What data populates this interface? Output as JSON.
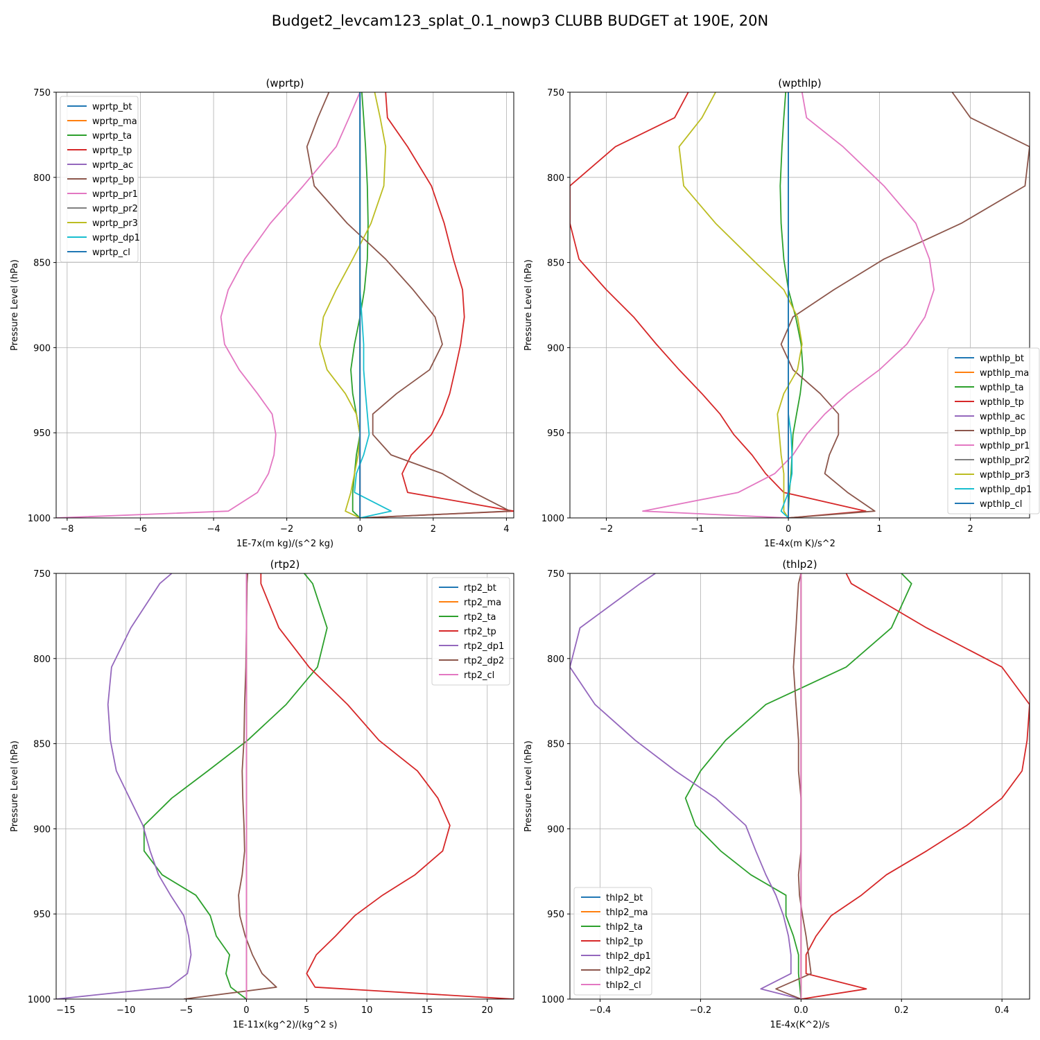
{
  "figure": {
    "title": "Budget2_levcam123_splat_0.1_nowp3 CLUBB BUDGET at 190E, 20N"
  },
  "chart_data": [
    {
      "type": "line",
      "title": "(wprtp)",
      "xlabel": "1E-7x(m kg)/(s^2 kg)",
      "ylabel": "Pressure Level (hPa)",
      "xlim": [
        -8.3,
        4.2
      ],
      "ylim": [
        1000,
        750
      ],
      "xticks": [
        -8,
        -6,
        -4,
        -2,
        0,
        2,
        4
      ],
      "yticks": [
        750,
        800,
        850,
        900,
        950,
        1000
      ],
      "grid": true,
      "legend_position": "upper-left",
      "y": [
        750,
        765,
        782,
        805,
        827,
        848,
        866,
        882,
        898,
        913,
        927,
        939,
        951,
        963,
        974,
        985,
        996,
        1000
      ],
      "series": [
        {
          "name": "wprtp_bt",
          "color": "#1f77b4",
          "values": [
            0,
            0,
            0,
            0,
            0,
            0,
            0,
            0,
            0,
            0,
            0,
            0,
            0,
            0,
            0,
            0,
            0,
            0
          ]
        },
        {
          "name": "wprtp_ma",
          "color": "#ff7f0e",
          "values": [
            0,
            0,
            0,
            0,
            0,
            0,
            0,
            0,
            0,
            0,
            0,
            0,
            0,
            0,
            0,
            0,
            0,
            0
          ]
        },
        {
          "name": "wprtp_ta",
          "color": "#2ca02c",
          "values": [
            0.05,
            0.1,
            0.15,
            0.2,
            0.22,
            0.2,
            0.12,
            0.0,
            -0.15,
            -0.25,
            -0.2,
            -0.1,
            0.0,
            -0.1,
            -0.15,
            -0.2,
            -0.2,
            0.0
          ]
        },
        {
          "name": "wprtp_tp",
          "color": "#d62728",
          "values": [
            0.7,
            0.75,
            1.3,
            1.95,
            2.3,
            2.55,
            2.8,
            2.85,
            2.75,
            2.6,
            2.45,
            2.25,
            1.95,
            1.4,
            1.15,
            1.3,
            4.2,
            0.0
          ]
        },
        {
          "name": "wprtp_ac",
          "color": "#9467bd",
          "values": [
            0,
            0,
            0,
            0,
            0,
            0,
            0,
            0,
            0,
            0,
            0,
            0,
            0,
            0,
            0,
            0,
            0,
            0
          ]
        },
        {
          "name": "wprtp_bp",
          "color": "#8c564b",
          "values": [
            -0.85,
            -1.15,
            -1.45,
            -1.25,
            -0.35,
            0.7,
            1.45,
            2.05,
            2.25,
            1.9,
            1.0,
            0.35,
            0.35,
            0.85,
            2.25,
            3.1,
            4.1,
            0.0
          ]
        },
        {
          "name": "wprtp_pr1",
          "color": "#e377c2",
          "values": [
            0.0,
            -0.3,
            -0.65,
            -1.55,
            -2.45,
            -3.15,
            -3.6,
            -3.8,
            -3.7,
            -3.3,
            -2.8,
            -2.4,
            -2.3,
            -2.35,
            -2.5,
            -2.8,
            -3.6,
            -8.3
          ]
        },
        {
          "name": "wprtp_pr2",
          "color": "#7f7f7f",
          "values": [
            0,
            0,
            0,
            0,
            0,
            0,
            0,
            0,
            0,
            0,
            0,
            0,
            0,
            0,
            0,
            0,
            0,
            0
          ]
        },
        {
          "name": "wprtp_pr3",
          "color": "#bcbd22",
          "values": [
            0.4,
            0.55,
            0.7,
            0.65,
            0.3,
            -0.2,
            -0.65,
            -1.0,
            -1.1,
            -0.9,
            -0.4,
            -0.1,
            0.0,
            -0.05,
            -0.15,
            -0.25,
            -0.4,
            0.0
          ]
        },
        {
          "name": "wprtp_dp1",
          "color": "#17becf",
          "values": [
            0,
            0,
            0,
            0,
            0,
            0,
            0,
            0.05,
            0.1,
            0.1,
            0.15,
            0.2,
            0.25,
            0.1,
            -0.1,
            -0.15,
            0.85,
            0.0
          ]
        },
        {
          "name": "wprtp_cl",
          "color": "#1f77b4",
          "values": [
            0,
            0,
            0,
            0,
            0,
            0,
            0,
            0,
            0,
            0,
            0,
            0,
            0,
            0,
            0,
            0,
            0,
            0
          ]
        }
      ]
    },
    {
      "type": "line",
      "title": "(wpthlp)",
      "xlabel": "1E-4x(m K)/s^2",
      "ylabel": "Pressure Level (hPa)",
      "xlim": [
        -2.4,
        2.65
      ],
      "ylim": [
        1000,
        750
      ],
      "xticks": [
        -2,
        -1,
        0,
        1,
        2
      ],
      "yticks": [
        750,
        800,
        850,
        900,
        950,
        1000
      ],
      "grid": true,
      "legend_position": "lower-right",
      "y": [
        750,
        765,
        782,
        805,
        827,
        848,
        866,
        882,
        898,
        913,
        927,
        939,
        951,
        963,
        974,
        985,
        996,
        1000
      ],
      "series": [
        {
          "name": "wpthlp_bt",
          "color": "#1f77b4",
          "values": [
            0,
            0,
            0,
            0,
            0,
            0,
            0,
            0,
            0,
            0,
            0,
            0,
            0,
            0,
            0,
            0,
            0,
            0
          ]
        },
        {
          "name": "wpthlp_ma",
          "color": "#ff7f0e",
          "values": [
            0,
            0,
            0,
            0,
            0,
            0,
            0,
            0,
            0,
            0,
            0,
            0,
            0,
            0,
            0,
            0,
            0,
            0
          ]
        },
        {
          "name": "wpthlp_ta",
          "color": "#2ca02c",
          "values": [
            -0.03,
            -0.05,
            -0.07,
            -0.09,
            -0.08,
            -0.05,
            0.0,
            0.08,
            0.14,
            0.16,
            0.13,
            0.09,
            0.05,
            0.04,
            0.03,
            0.01,
            0.0,
            0.0
          ]
        },
        {
          "name": "wpthlp_tp",
          "color": "#d62728",
          "values": [
            -1.1,
            -1.25,
            -1.9,
            -2.4,
            -2.4,
            -2.3,
            -2.0,
            -1.7,
            -1.45,
            -1.2,
            -0.95,
            -0.75,
            -0.6,
            -0.4,
            -0.25,
            -0.05,
            0.85,
            0.0
          ]
        },
        {
          "name": "wpthlp_ac",
          "color": "#9467bd",
          "values": [
            0,
            0,
            0,
            0,
            0,
            0,
            0,
            0,
            0,
            0,
            0,
            0,
            0,
            0,
            0,
            0,
            0,
            0
          ]
        },
        {
          "name": "wpthlp_bp",
          "color": "#8c564b",
          "values": [
            1.8,
            2.0,
            2.65,
            2.6,
            1.9,
            1.05,
            0.5,
            0.05,
            -0.08,
            0.05,
            0.35,
            0.55,
            0.55,
            0.45,
            0.4,
            0.65,
            0.95,
            0.0
          ]
        },
        {
          "name": "wpthlp_pr1",
          "color": "#e377c2",
          "values": [
            0.15,
            0.2,
            0.6,
            1.05,
            1.4,
            1.55,
            1.6,
            1.5,
            1.3,
            1.0,
            0.65,
            0.4,
            0.2,
            0.05,
            -0.15,
            -0.55,
            -1.6,
            0.0
          ]
        },
        {
          "name": "wpthlp_pr2",
          "color": "#7f7f7f",
          "values": [
            0,
            0,
            0,
            0,
            0,
            0,
            0,
            0,
            0,
            0,
            0,
            0,
            0,
            0,
            0,
            0,
            0,
            0
          ]
        },
        {
          "name": "wpthlp_pr3",
          "color": "#bcbd22",
          "values": [
            -0.8,
            -0.95,
            -1.2,
            -1.15,
            -0.8,
            -0.4,
            -0.05,
            0.1,
            0.15,
            0.1,
            -0.05,
            -0.12,
            -0.1,
            -0.08,
            -0.05,
            -0.05,
            -0.05,
            0.0
          ]
        },
        {
          "name": "wpthlp_dp1",
          "color": "#17becf",
          "values": [
            0,
            0,
            0,
            0,
            0,
            0,
            0,
            0,
            0,
            0,
            0,
            0,
            0.03,
            0.04,
            0.04,
            0.0,
            -0.08,
            0.0
          ]
        },
        {
          "name": "wpthlp_cl",
          "color": "#1f77b4",
          "values": [
            0,
            0,
            0,
            0,
            0,
            0,
            0,
            0,
            0,
            0,
            0,
            0,
            0,
            0,
            0,
            0,
            0,
            0
          ]
        }
      ]
    },
    {
      "type": "line",
      "title": "(rtp2)",
      "xlabel": "1E-11x(kg^2)/(kg^2 s)",
      "ylabel": "Pressure Level (hPa)",
      "xlim": [
        -15.8,
        22.2
      ],
      "ylim": [
        1000,
        750
      ],
      "xticks": [
        -15,
        -10,
        -5,
        0,
        5,
        10,
        15,
        20
      ],
      "yticks": [
        750,
        800,
        850,
        900,
        950,
        1000
      ],
      "grid": true,
      "legend_position": "upper-right",
      "y": [
        750,
        756,
        782,
        805,
        827,
        848,
        866,
        882,
        898,
        913,
        927,
        939,
        951,
        963,
        974,
        985,
        993,
        1000
      ],
      "series": [
        {
          "name": "rtp2_bt",
          "color": "#1f77b4",
          "values": [
            0,
            0,
            0,
            0,
            0,
            0,
            0,
            0,
            0,
            0,
            0,
            0,
            0,
            0,
            0,
            0,
            0,
            0
          ]
        },
        {
          "name": "rtp2_ma",
          "color": "#ff7f0e",
          "values": [
            0,
            0,
            0,
            0,
            0,
            0,
            0,
            0,
            0,
            0,
            0,
            0,
            0,
            0,
            0,
            0,
            0,
            0
          ]
        },
        {
          "name": "rtp2_ta",
          "color": "#2ca02c",
          "values": [
            4.8,
            5.5,
            6.7,
            5.9,
            3.3,
            0.1,
            -3.2,
            -6.2,
            -8.5,
            -8.5,
            -7.0,
            -4.2,
            -3.0,
            -2.5,
            -1.4,
            -1.7,
            -1.3,
            0.0
          ]
        },
        {
          "name": "rtp2_tp",
          "color": "#d62728",
          "values": [
            1.2,
            1.2,
            2.7,
            5.2,
            8.4,
            11.0,
            14.2,
            15.9,
            16.9,
            16.3,
            14.0,
            11.3,
            9.0,
            7.4,
            5.8,
            5.0,
            5.7,
            22.2
          ]
        },
        {
          "name": "rtp2_dp1",
          "color": "#9467bd",
          "values": [
            -6.2,
            -7.2,
            -9.6,
            -11.2,
            -11.5,
            -11.3,
            -10.8,
            -9.7,
            -8.6,
            -8.0,
            -7.3,
            -6.3,
            -5.2,
            -4.8,
            -4.6,
            -4.9,
            -6.4,
            -15.8
          ]
        },
        {
          "name": "rtp2_dp2",
          "color": "#8c564b",
          "values": [
            0.1,
            0.05,
            0.0,
            -0.05,
            -0.15,
            -0.2,
            -0.35,
            -0.3,
            -0.2,
            -0.15,
            -0.35,
            -0.65,
            -0.55,
            -0.1,
            0.5,
            1.3,
            2.5,
            -5.2
          ]
        },
        {
          "name": "rtp2_cl",
          "color": "#e377c2",
          "values": [
            0,
            0,
            0,
            0,
            0,
            0,
            0,
            0,
            0,
            0,
            0,
            0,
            0,
            0,
            0,
            0,
            0,
            0
          ]
        }
      ]
    },
    {
      "type": "line",
      "title": "(thlp2)",
      "xlabel": "1E-4x(K^2)/s",
      "ylabel": "Pressure Level (hPa)",
      "xlim": [
        -0.46,
        0.455
      ],
      "ylim": [
        1000,
        750
      ],
      "xticks": [
        -0.4,
        -0.2,
        0.0,
        0.2,
        0.4
      ],
      "yticks": [
        750,
        800,
        850,
        900,
        950,
        1000
      ],
      "grid": true,
      "legend_position": "lower-left",
      "y": [
        750,
        756,
        782,
        805,
        827,
        848,
        866,
        882,
        898,
        913,
        927,
        939,
        951,
        963,
        974,
        985,
        994,
        1000
      ],
      "series": [
        {
          "name": "thlp2_bt",
          "color": "#1f77b4",
          "values": [
            0,
            0,
            0,
            0,
            0,
            0,
            0,
            0,
            0,
            0,
            0,
            0,
            0,
            0,
            0,
            0,
            0,
            0
          ]
        },
        {
          "name": "thlp2_ma",
          "color": "#ff7f0e",
          "values": [
            0,
            0,
            0,
            0,
            0,
            0,
            0,
            0,
            0,
            0,
            0,
            0,
            0,
            0,
            0,
            0,
            0,
            0
          ]
        },
        {
          "name": "thlp2_ta",
          "color": "#2ca02c",
          "values": [
            0.2,
            0.22,
            0.18,
            0.09,
            -0.07,
            -0.15,
            -0.2,
            -0.23,
            -0.21,
            -0.16,
            -0.1,
            -0.03,
            -0.03,
            -0.015,
            -0.005,
            -0.005,
            -0.002,
            0.0
          ]
        },
        {
          "name": "thlp2_tp",
          "color": "#d62728",
          "values": [
            0.09,
            0.1,
            0.25,
            0.4,
            0.455,
            0.45,
            0.44,
            0.4,
            0.33,
            0.25,
            0.17,
            0.12,
            0.06,
            0.03,
            0.01,
            0.01,
            0.13,
            0.0
          ]
        },
        {
          "name": "thlp2_dp1",
          "color": "#9467bd",
          "values": [
            -0.29,
            -0.32,
            -0.44,
            -0.46,
            -0.41,
            -0.33,
            -0.25,
            -0.17,
            -0.11,
            -0.09,
            -0.07,
            -0.05,
            -0.035,
            -0.025,
            -0.02,
            -0.02,
            -0.08,
            0.0
          ]
        },
        {
          "name": "thlp2_dp2",
          "color": "#8c564b",
          "values": [
            0.0,
            -0.005,
            -0.01,
            -0.015,
            -0.01,
            -0.005,
            -0.005,
            0.0,
            0.0,
            0.0,
            -0.005,
            -0.003,
            0.003,
            0.01,
            0.015,
            0.02,
            -0.05,
            0.0
          ]
        },
        {
          "name": "thlp2_cl",
          "color": "#e377c2",
          "values": [
            0,
            0,
            0,
            0,
            0,
            0,
            0,
            0,
            0,
            0,
            0,
            0,
            0,
            0,
            0,
            0,
            0,
            0
          ]
        }
      ]
    }
  ]
}
